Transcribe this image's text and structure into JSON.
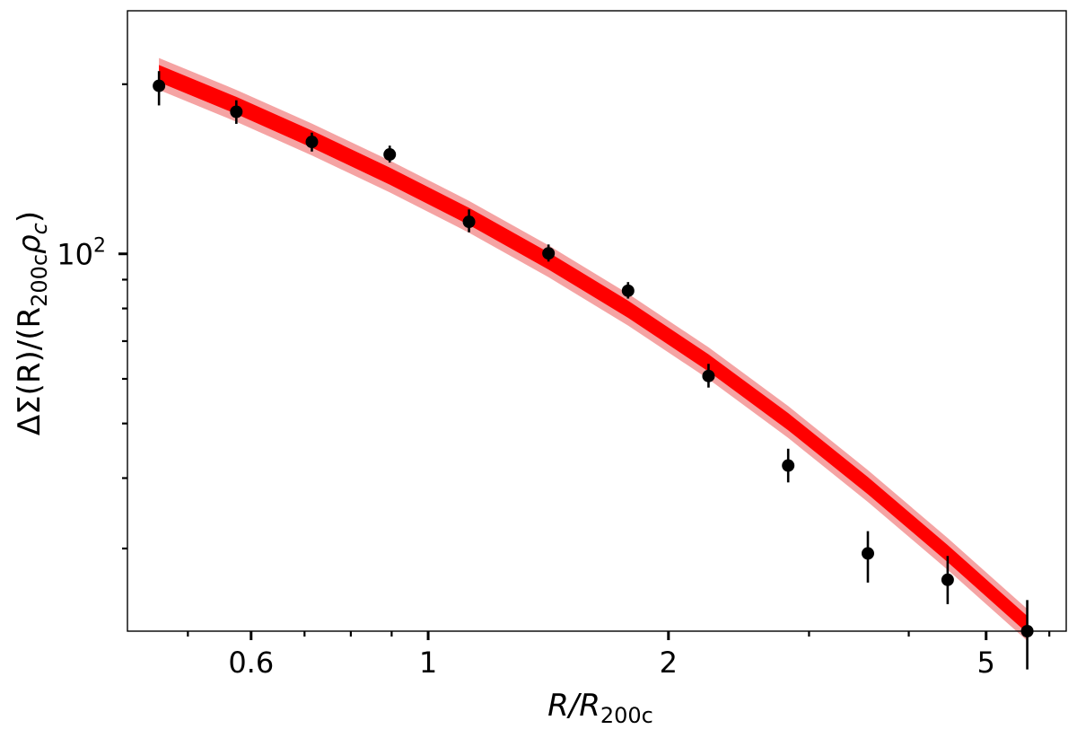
{
  "chart_data": {
    "type": "scatter",
    "xlabel": {
      "main": "R/R",
      "sub": "200c"
    },
    "ylabel": {
      "pre": "ΔΣ(R)/(R",
      "sub": "200c",
      "rho": "ρ",
      "rhosub": "c",
      "post": ")"
    },
    "x_scale": "log",
    "y_scale": "log",
    "xlim": [
      0.42,
      6.3
    ],
    "ylim": [
      21.4,
      270
    ],
    "x_ticks": [
      {
        "value": 0.6,
        "label": "0.6"
      },
      {
        "value": 1,
        "label": "1"
      },
      {
        "value": 2,
        "label": "2"
      },
      {
        "value": 5,
        "label": "5"
      }
    ],
    "x_minor_ticks": [
      0.5,
      0.7,
      0.8,
      0.9,
      3,
      4,
      6
    ],
    "y_ticks": [
      {
        "value": 100,
        "label_base": "10",
        "label_exp": "2"
      }
    ],
    "y_minor_ticks": [
      30,
      40,
      50,
      60,
      70,
      80,
      90,
      200
    ],
    "grid": false,
    "legend": "none",
    "colors": {
      "model": "#ff0000",
      "model_band": "#f5a3a3",
      "points": "#000000"
    },
    "series": [
      {
        "kind": "points_with_errorbars",
        "x": [
          0.46,
          0.575,
          0.715,
          0.895,
          1.125,
          1.415,
          1.78,
          2.245,
          2.825,
          3.555,
          4.475,
          5.63
        ],
        "y": [
          198.7,
          178.7,
          158.0,
          150.1,
          114.0,
          100.2,
          86.0,
          60.7,
          42.1,
          29.4,
          26.4,
          21.4
        ],
        "yerr_low": [
          15.3,
          8.6,
          6.1,
          4.9,
          4.8,
          3.3,
          2.7,
          2.8,
          2.8,
          3.3,
          2.5,
          3.1
        ],
        "yerr_high": [
          12.3,
          8.6,
          6.1,
          5.5,
          5.9,
          3.7,
          3.1,
          3.1,
          3.0,
          2.8,
          2.7,
          2.9
        ]
      },
      {
        "kind": "model_band",
        "x": [
          0.46,
          0.575,
          0.715,
          0.895,
          1.125,
          1.415,
          1.78,
          2.245,
          2.825,
          3.555,
          4.475,
          5.63
        ],
        "y": [
          209.0,
          183.5,
          159.9,
          137.5,
          116.6,
          97.2,
          79.8,
          64.1,
          50.4,
          38.8,
          29.4,
          22.0
        ],
        "band_inner": 0.035,
        "band_outer": 0.065
      }
    ]
  }
}
